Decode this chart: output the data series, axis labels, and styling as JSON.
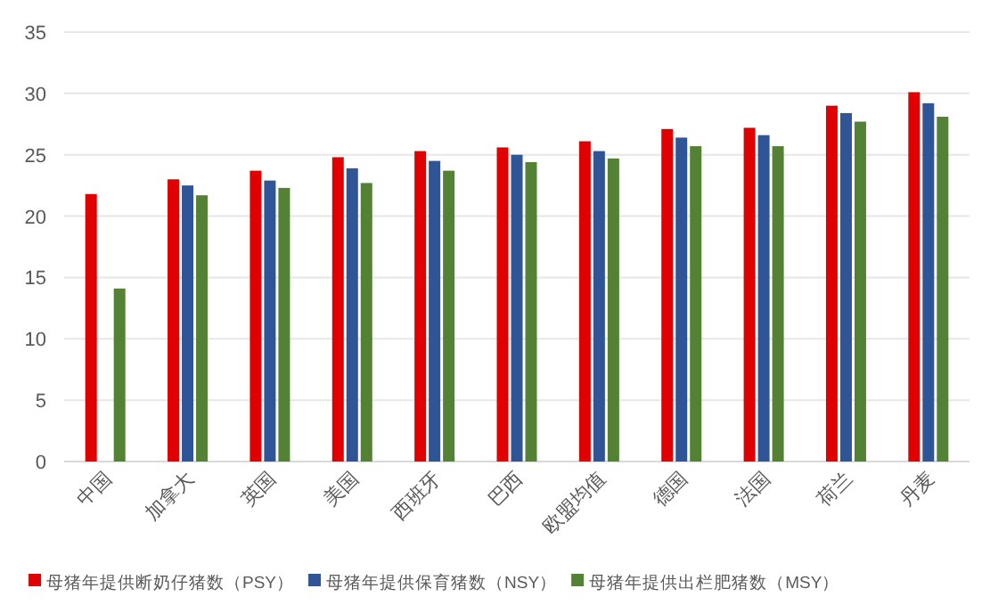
{
  "chart_data": {
    "type": "bar",
    "categories": [
      "中国",
      "加拿大",
      "英国",
      "美国",
      "西班牙",
      "巴西",
      "欧盟均值",
      "德国",
      "法国",
      "荷兰",
      "丹麦"
    ],
    "series": [
      {
        "name": "母猪年提供断奶仔猪数（PSY）",
        "color": "#e00000",
        "values": [
          21.8,
          23.0,
          23.7,
          24.8,
          25.3,
          25.6,
          26.1,
          27.1,
          27.2,
          29.0,
          30.1
        ]
      },
      {
        "name": "母猪年提供保育猪数（NSY）",
        "color": "#2f5597",
        "values": [
          null,
          22.5,
          22.9,
          23.9,
          24.5,
          25.0,
          25.3,
          26.4,
          26.6,
          28.4,
          29.2
        ]
      },
      {
        "name": "母猪年提供出栏肥猪数（MSY）",
        "color": "#548235",
        "values": [
          14.1,
          21.7,
          22.3,
          22.7,
          23.7,
          24.4,
          24.7,
          25.7,
          25.7,
          27.7,
          28.1
        ]
      }
    ],
    "ylim": [
      0,
      35
    ],
    "yticks": [
      0,
      5,
      10,
      15,
      20,
      25,
      30,
      35
    ],
    "grid": "y",
    "legend": "bottom"
  }
}
